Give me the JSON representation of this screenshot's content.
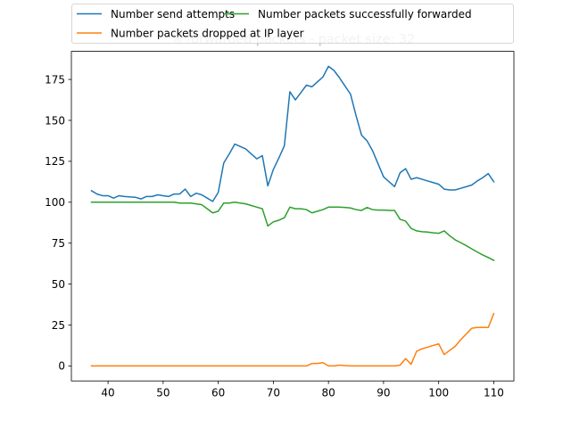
{
  "chart_data": {
    "type": "line",
    "title": "% forwarded packets - packet size: 32",
    "xlabel": "",
    "ylabel": "",
    "xlim": [
      33.35,
      113.65
    ],
    "ylim": [
      -9.15,
      192.15
    ],
    "xticks": [
      40,
      50,
      60,
      70,
      80,
      90,
      100,
      110
    ],
    "yticks": [
      0,
      25,
      50,
      75,
      100,
      125,
      150,
      175
    ],
    "grid": false,
    "legend_position": "top",
    "series": [
      {
        "name": "Number send attempts",
        "color": "#1f77b4",
        "x": [
          37,
          38,
          39,
          40,
          41,
          42,
          43,
          44,
          45,
          46,
          47,
          48,
          49,
          50,
          51,
          52,
          53,
          54,
          55,
          56,
          57,
          58,
          59,
          60,
          61,
          62,
          63,
          64,
          65,
          66,
          67,
          68,
          69,
          70,
          71,
          72,
          73,
          74,
          75,
          76,
          77,
          78,
          79,
          80,
          81,
          82,
          83,
          84,
          85,
          86,
          87,
          88,
          89,
          90,
          91,
          92,
          93,
          94,
          95,
          96,
          97,
          98,
          99,
          100,
          101,
          102,
          103,
          104,
          105,
          106,
          107,
          108,
          109,
          110
        ],
        "values": [
          107,
          105,
          104,
          104,
          102.5,
          104,
          103.5,
          103.2,
          103,
          102,
          103.5,
          103.5,
          104.5,
          104,
          103.5,
          105,
          105,
          108,
          103.5,
          105.5,
          104.5,
          102.5,
          100.5,
          106,
          124,
          129.5,
          135.5,
          134,
          132.5,
          129.5,
          126.5,
          128.5,
          110,
          120,
          127,
          134.5,
          167.5,
          162.5,
          167,
          171.5,
          170.5,
          173.5,
          176.5,
          183,
          180.5,
          176,
          171,
          166,
          153,
          141,
          137.5,
          131.5,
          123.5,
          115.5,
          112.5,
          109.5,
          118,
          120.5,
          114,
          115,
          114,
          113,
          112,
          111,
          108,
          107.5,
          107.5,
          108.5,
          109.5,
          110.5,
          113,
          115,
          117.5,
          112.5
        ]
      },
      {
        "name": "Number packets successfully forwarded",
        "color": "#2ca02c",
        "x": [
          37,
          38,
          39,
          40,
          41,
          42,
          43,
          44,
          45,
          46,
          47,
          48,
          49,
          50,
          51,
          52,
          53,
          54,
          55,
          56,
          57,
          58,
          59,
          60,
          61,
          62,
          63,
          64,
          65,
          66,
          67,
          68,
          69,
          70,
          71,
          72,
          73,
          74,
          75,
          76,
          77,
          78,
          79,
          80,
          81,
          82,
          83,
          84,
          85,
          86,
          87,
          88,
          89,
          90,
          91,
          92,
          93,
          94,
          95,
          96,
          97,
          98,
          99,
          100,
          101,
          102,
          103,
          104,
          105,
          106,
          107,
          108,
          109,
          110
        ],
        "values": [
          100,
          100,
          100,
          100,
          100,
          100,
          100,
          100,
          100,
          100,
          100,
          100,
          100,
          100,
          100,
          100,
          99.5,
          99.5,
          99.5,
          99,
          98.5,
          96,
          93.5,
          94.5,
          99.5,
          99.5,
          100,
          99.5,
          99,
          98,
          97,
          96,
          85.5,
          88,
          89,
          90.5,
          97,
          96,
          96,
          95.5,
          93.5,
          94.5,
          95.5,
          97,
          97,
          97,
          96.8,
          96.5,
          95.5,
          95,
          96.8,
          95.5,
          95.2,
          95.2,
          95,
          95,
          89.5,
          88.5,
          84,
          82.5,
          82,
          81.8,
          81.3,
          81,
          82.5,
          79.5,
          77,
          75.3,
          73.5,
          71.5,
          69.6,
          67.8,
          66.2,
          64.5
        ]
      },
      {
        "name": "Number packets dropped at IP layer",
        "color": "#ff7f0e",
        "x": [
          37,
          38,
          39,
          40,
          41,
          42,
          43,
          44,
          45,
          46,
          47,
          48,
          49,
          50,
          51,
          52,
          53,
          54,
          55,
          56,
          57,
          58,
          59,
          60,
          61,
          62,
          63,
          64,
          65,
          66,
          67,
          68,
          69,
          70,
          71,
          72,
          73,
          74,
          75,
          76,
          77,
          78,
          79,
          80,
          81,
          82,
          83,
          84,
          85,
          86,
          87,
          88,
          89,
          90,
          91,
          92,
          93,
          94,
          95,
          96,
          97,
          98,
          99,
          100,
          101,
          102,
          103,
          104,
          105,
          106,
          107,
          108,
          109,
          110
        ],
        "values": [
          0,
          0,
          0,
          0,
          0,
          0,
          0,
          0,
          0,
          0,
          0,
          0,
          0,
          0,
          0,
          0,
          0,
          0,
          0,
          0,
          0,
          0,
          0,
          0,
          0,
          0,
          0,
          0,
          0,
          0,
          0,
          0,
          0,
          0,
          0,
          0,
          0,
          0,
          0,
          0,
          1.5,
          1.5,
          2,
          0,
          0,
          0.5,
          0.2,
          0,
          0,
          0,
          0,
          0,
          0,
          0,
          0,
          0,
          0.5,
          4.5,
          1,
          9,
          10.5,
          11.5,
          12.5,
          13.5,
          7,
          9.5,
          12,
          16,
          19.5,
          23,
          23.5,
          23.5,
          23.5,
          32
        ]
      }
    ]
  }
}
